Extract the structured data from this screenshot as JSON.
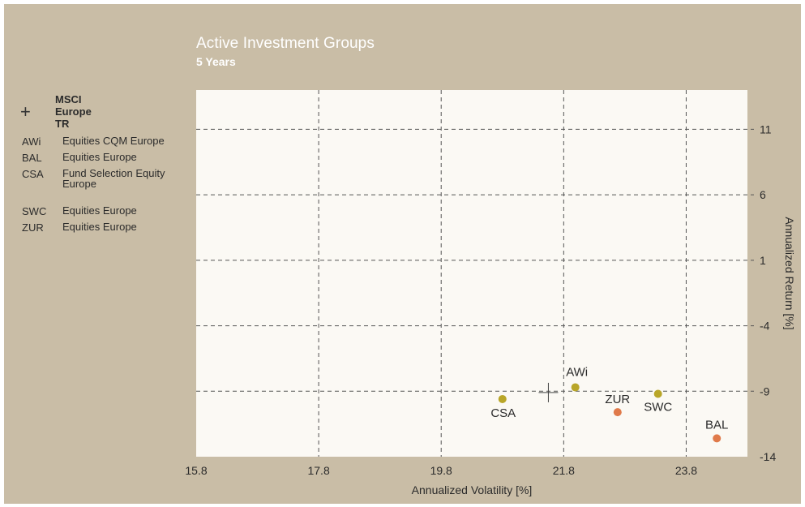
{
  "chart_data": {
    "type": "scatter",
    "title": "Active Investment Groups",
    "subtitle": "5 Years",
    "xlabel": "Annualized Volatility [%]",
    "ylabel": "Annualized Return [%]",
    "xlim": [
      15.8,
      24.8
    ],
    "ylim": [
      -14,
      14
    ],
    "xticks": [
      15.8,
      17.8,
      19.8,
      21.8,
      23.8
    ],
    "yticks": [
      11,
      6,
      1,
      -4,
      -9,
      -14
    ],
    "grid": true,
    "legend_position": "left",
    "benchmark": {
      "name": "MSCI Europe TR",
      "x": 21.55,
      "y": -9.1
    },
    "points": [
      {
        "label": "AWi",
        "x": 21.99,
        "y": -8.7,
        "color": "#b9a628"
      },
      {
        "label": "BAL",
        "x": 24.3,
        "y": -12.6,
        "color": "#e07a4a"
      },
      {
        "label": "CSA",
        "x": 20.8,
        "y": -9.6,
        "color": "#b9a628"
      },
      {
        "label": "SWC",
        "x": 23.34,
        "y": -9.2,
        "color": "#b9a628"
      },
      {
        "label": "ZUR",
        "x": 22.68,
        "y": -10.6,
        "color": "#e07a4a"
      }
    ]
  },
  "legend": {
    "benchmark_label": "MSCI Europe TR",
    "items": [
      {
        "code": "AWi",
        "desc": "Equities CQM Europe"
      },
      {
        "code": "BAL",
        "desc": "Equities Europe"
      },
      {
        "code": "CSA",
        "desc": "Fund Selection Equity Europe"
      },
      {
        "code": "SWC",
        "desc": "Equities Europe"
      },
      {
        "code": "ZUR",
        "desc": "Equities Europe"
      }
    ]
  },
  "colors": {
    "background": "#c9bda6",
    "plot_area": "#fbf9f4",
    "grid": "#555555"
  }
}
